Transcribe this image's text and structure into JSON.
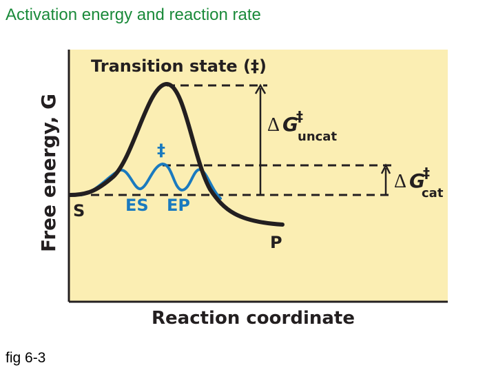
{
  "slide": {
    "title": "Activation energy and reaction rate",
    "caption": "fig 6-3"
  },
  "diagram": {
    "y_axis_label": "Free energy, G",
    "x_axis_label": "Reaction coordinate",
    "transition_state_label": "Transition state (‡)",
    "double_dagger": "‡",
    "delta_symbol": "Δ",
    "g_symbol": "G",
    "uncat_subscript": "uncat",
    "cat_subscript": "cat",
    "substrate_label": "S",
    "es_label": "ES",
    "ep_label": "EP",
    "product_label": "P"
  },
  "colors": {
    "panel_background": "#fbeeb3",
    "uncatalyzed_curve": "#231f20",
    "catalyzed_curve": "#1a7abf",
    "title_text": "#1a8a3a"
  }
}
